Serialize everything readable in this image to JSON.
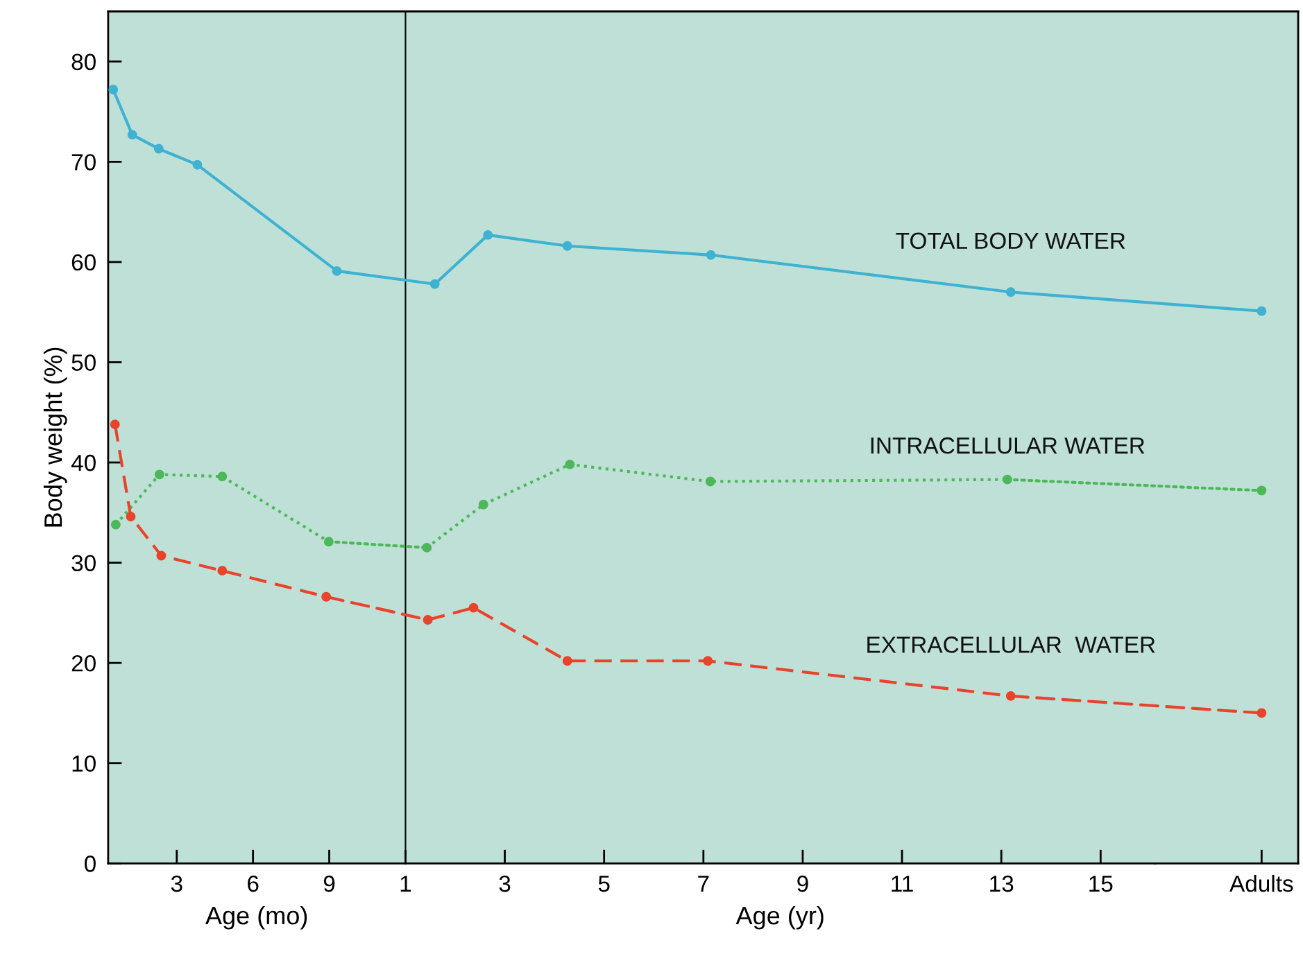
{
  "chart_data": [
    {
      "type": "line",
      "xlabel": "Age (mo)",
      "ylabel": "Body weight (%)",
      "xlim": [
        0.3,
        12
      ],
      "ylim": [
        0,
        85
      ],
      "xticks": [
        3,
        6,
        9
      ],
      "yticks": [
        0,
        10,
        20,
        30,
        40,
        50,
        60,
        70,
        80
      ],
      "grid": false,
      "legend": false,
      "marker": "circle",
      "series": [
        {
          "color": "#3fb2d2",
          "line_style": "solid",
          "x": [
            0.5,
            1.25,
            2.29,
            3.81,
            9.3
          ],
          "values": [
            77.2,
            72.7,
            71.3,
            69.7,
            59.1
          ]
        },
        {
          "color": "#4cb85a",
          "line_style": "dotted",
          "x": [
            0.6,
            2.32,
            4.79,
            8.98
          ],
          "values": [
            33.8,
            38.8,
            38.6,
            32.1
          ]
        },
        {
          "color": "#e8432b",
          "line_style": "dashed",
          "x": [
            0.57,
            1.19,
            2.39,
            4.79,
            8.88
          ],
          "values": [
            43.8,
            34.6,
            30.7,
            29.2,
            26.6
          ]
        }
      ]
    },
    {
      "type": "line",
      "xlabel": "Age (yr)",
      "xlim": [
        1,
        16.1
      ],
      "ylim": [
        0,
        85
      ],
      "xticks": [
        1,
        3,
        5,
        7,
        9,
        11,
        13,
        15
      ],
      "tick_labels": "x",
      "grid": false,
      "legend": false,
      "marker": "circle",
      "series": [
        {
          "name": "TOTAL BODY WATER",
          "color": "#3fb2d2",
          "line_style": "solid",
          "x": [
            1.59,
            2.66,
            4.26,
            7.15,
            13.19
          ],
          "values": [
            57.8,
            62.7,
            61.6,
            60.7,
            57.0
          ]
        },
        {
          "name": "INTRACELLULAR WATER",
          "color": "#4cb85a",
          "line_style": "dotted",
          "x": [
            1.43,
            2.57,
            4.31,
            7.14,
            13.12
          ],
          "values": [
            31.5,
            35.8,
            39.8,
            38.1,
            38.3
          ]
        },
        {
          "name": "EXTRACELLULAR  WATER",
          "color": "#e8432b",
          "line_style": "dashed",
          "x": [
            1.45,
            2.37,
            4.26,
            7.09,
            13.19
          ],
          "values": [
            24.3,
            25.5,
            20.2,
            20.2,
            16.7
          ]
        }
      ]
    },
    {
      "type": "line",
      "categories": [
        "Adults"
      ],
      "ylim": [
        0,
        85
      ],
      "tick_labels": "x",
      "grid": false,
      "legend": false,
      "marker": "circle",
      "series": [
        {
          "color": "#3fb2d2",
          "line_style": "solid",
          "values": [
            55.1
          ]
        },
        {
          "color": "#4cb85a",
          "line_style": "dotted",
          "values": [
            37.2
          ]
        },
        {
          "color": "#e8432b",
          "line_style": "dashed",
          "values": [
            15.0
          ]
        }
      ]
    }
  ]
}
